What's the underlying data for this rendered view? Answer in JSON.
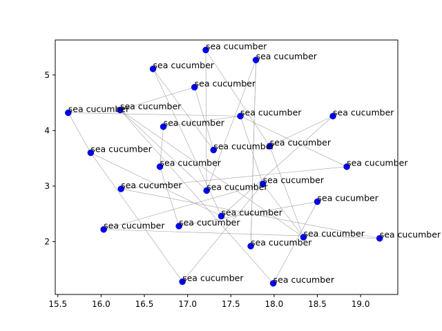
{
  "chart_data": {
    "type": "scatter",
    "title": "",
    "xlabel": "",
    "ylabel": "",
    "xlim": [
      15.47,
      19.43
    ],
    "ylim": [
      1.05,
      5.63
    ],
    "xticks": [
      "15.5",
      "16.0",
      "16.5",
      "17.0",
      "17.5",
      "18.0",
      "18.5",
      "19.0"
    ],
    "yticks": [
      "2",
      "3",
      "4",
      "5"
    ],
    "marker_color": "#0000ff",
    "edge_color": "#a0a0a0",
    "nodes": [
      {
        "x": 17.21,
        "y": 5.45,
        "label": "sea cucumber"
      },
      {
        "x": 17.79,
        "y": 5.27,
        "label": "sea cucumber"
      },
      {
        "x": 16.6,
        "y": 5.11,
        "label": "sea cucumber"
      },
      {
        "x": 17.08,
        "y": 4.78,
        "label": "sea cucumber"
      },
      {
        "x": 15.62,
        "y": 4.32,
        "label": "sea cucumber"
      },
      {
        "x": 16.22,
        "y": 4.37,
        "label": "sea cucumber"
      },
      {
        "x": 17.61,
        "y": 4.26,
        "label": "sea cucumber"
      },
      {
        "x": 18.68,
        "y": 4.26,
        "label": "sea cucumber"
      },
      {
        "x": 16.72,
        "y": 4.07,
        "label": "sea cucumber"
      },
      {
        "x": 17.95,
        "y": 3.72,
        "label": "sea cucumber"
      },
      {
        "x": 17.3,
        "y": 3.65,
        "label": "sea cucumber"
      },
      {
        "x": 15.88,
        "y": 3.6,
        "label": "sea cucumber"
      },
      {
        "x": 16.68,
        "y": 3.35,
        "label": "sea cucumber"
      },
      {
        "x": 18.84,
        "y": 3.35,
        "label": "sea cucumber"
      },
      {
        "x": 17.87,
        "y": 3.04,
        "label": "sea cucumber"
      },
      {
        "x": 17.22,
        "y": 2.92,
        "label": "sea cucumber"
      },
      {
        "x": 16.23,
        "y": 2.95,
        "label": "sea cucumber"
      },
      {
        "x": 18.5,
        "y": 2.72,
        "label": "sea cucumber"
      },
      {
        "x": 17.39,
        "y": 2.46,
        "label": "sea cucumber"
      },
      {
        "x": 16.9,
        "y": 2.28,
        "label": "sea cucumber"
      },
      {
        "x": 16.03,
        "y": 2.22,
        "label": "sea cucumber"
      },
      {
        "x": 18.34,
        "y": 2.08,
        "label": "sea cucumber"
      },
      {
        "x": 19.22,
        "y": 2.06,
        "label": "sea cucumber"
      },
      {
        "x": 17.73,
        "y": 1.92,
        "label": "sea cucumber"
      },
      {
        "x": 16.94,
        "y": 1.28,
        "label": "sea cucumber"
      },
      {
        "x": 17.99,
        "y": 1.25,
        "label": "sea cucumber"
      }
    ],
    "edges": [
      [
        0,
        15
      ],
      [
        0,
        9
      ],
      [
        1,
        23
      ],
      [
        2,
        10
      ],
      [
        2,
        18
      ],
      [
        3,
        5
      ],
      [
        4,
        11
      ],
      [
        4,
        6
      ],
      [
        5,
        15
      ],
      [
        5,
        21
      ],
      [
        6,
        13
      ],
      [
        6,
        14
      ],
      [
        6,
        8
      ],
      [
        7,
        18
      ],
      [
        7,
        9
      ],
      [
        8,
        12
      ],
      [
        10,
        3
      ],
      [
        11,
        24
      ],
      [
        11,
        18
      ],
      [
        12,
        19
      ],
      [
        13,
        16
      ],
      [
        14,
        20
      ],
      [
        14,
        21
      ],
      [
        15,
        1
      ],
      [
        16,
        22
      ],
      [
        17,
        25
      ],
      [
        19,
        17
      ],
      [
        20,
        22
      ],
      [
        21,
        9
      ],
      [
        25,
        5
      ],
      [
        24,
        14
      ],
      [
        23,
        1
      ]
    ]
  }
}
